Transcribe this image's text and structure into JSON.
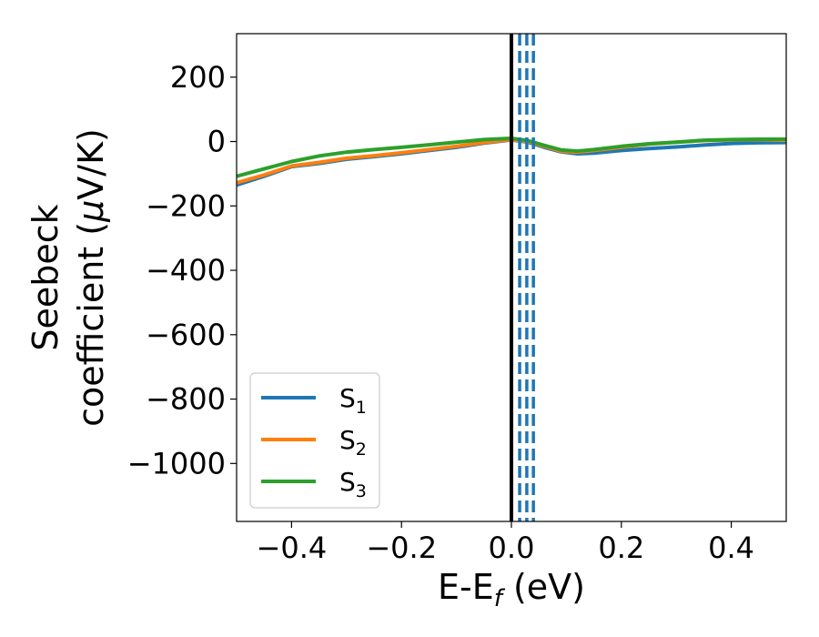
{
  "chart_data": {
    "type": "line",
    "xlabel": "E-E",
    "xlabel_sub": "f",
    "xlabel_unit": " (eV)",
    "ylabel_line1": "Seebeck",
    "ylabel_line2": "coefficient  (",
    "ylabel_mu": "μ",
    "ylabel_unit": "V/K)",
    "xlim": [
      -0.5,
      0.5
    ],
    "ylim": [
      -1180,
      335
    ],
    "xticks": [
      {
        "value": -0.4,
        "label": "−0.4"
      },
      {
        "value": -0.2,
        "label": "−0.2"
      },
      {
        "value": 0.0,
        "label": "0.0"
      },
      {
        "value": 0.2,
        "label": "0.2"
      },
      {
        "value": 0.4,
        "label": "0.4"
      }
    ],
    "yticks": [
      {
        "value": 200,
        "label": "200"
      },
      {
        "value": 0,
        "label": "0"
      },
      {
        "value": -200,
        "label": "−200"
      },
      {
        "value": -400,
        "label": "−400"
      },
      {
        "value": -600,
        "label": "−600"
      },
      {
        "value": -800,
        "label": "−800"
      },
      {
        "value": -1000,
        "label": "−1000"
      }
    ],
    "grid": false,
    "legend_position": "lower-left",
    "series": [
      {
        "name": "S",
        "sub": "1",
        "color": "#1f77b4",
        "x": [
          -0.5,
          -0.45,
          -0.4,
          -0.35,
          -0.3,
          -0.25,
          -0.2,
          -0.15,
          -0.1,
          -0.05,
          0.0,
          0.03,
          0.06,
          0.09,
          0.12,
          0.15,
          0.2,
          0.25,
          0.3,
          0.35,
          0.4,
          0.45,
          0.5
        ],
        "y": [
          -135,
          -108,
          -78,
          -68,
          -55,
          -47,
          -38,
          -28,
          -18,
          -5,
          5,
          -2,
          -18,
          -32,
          -38,
          -36,
          -28,
          -22,
          -17,
          -11,
          -6,
          -4,
          -3
        ]
      },
      {
        "name": "S",
        "sub": "2",
        "color": "#ff7f0e",
        "x": [
          -0.5,
          -0.45,
          -0.4,
          -0.35,
          -0.3,
          -0.25,
          -0.2,
          -0.15,
          -0.1,
          -0.05,
          0.0,
          0.03,
          0.06,
          0.09,
          0.12,
          0.15,
          0.2,
          0.25,
          0.3,
          0.35,
          0.4,
          0.45,
          0.5
        ],
        "y": [
          -128,
          -104,
          -76,
          -65,
          -52,
          -44,
          -35,
          -25,
          -15,
          -3,
          6,
          0,
          -15,
          -30,
          -33,
          -28,
          -18,
          -8,
          -2,
          3,
          5,
          6,
          4
        ]
      },
      {
        "name": "S",
        "sub": "3",
        "color": "#2ca02c",
        "x": [
          -0.5,
          -0.45,
          -0.4,
          -0.35,
          -0.3,
          -0.25,
          -0.2,
          -0.15,
          -0.1,
          -0.05,
          0.0,
          0.03,
          0.06,
          0.09,
          0.12,
          0.15,
          0.2,
          0.25,
          0.3,
          0.35,
          0.4,
          0.45,
          0.5
        ],
        "y": [
          -108,
          -85,
          -62,
          -45,
          -33,
          -25,
          -18,
          -10,
          -2,
          6,
          10,
          3,
          -12,
          -26,
          -30,
          -25,
          -15,
          -7,
          -2,
          4,
          6,
          7,
          7
        ]
      }
    ],
    "vlines": [
      {
        "x": 0.0,
        "color": "#000000",
        "style": "solid"
      },
      {
        "x": 0.015,
        "color": "#1f77b4",
        "style": "dashed"
      },
      {
        "x": 0.028,
        "color": "#1f77b4",
        "style": "dashed"
      },
      {
        "x": 0.04,
        "color": "#1f77b4",
        "style": "dashed"
      }
    ]
  }
}
